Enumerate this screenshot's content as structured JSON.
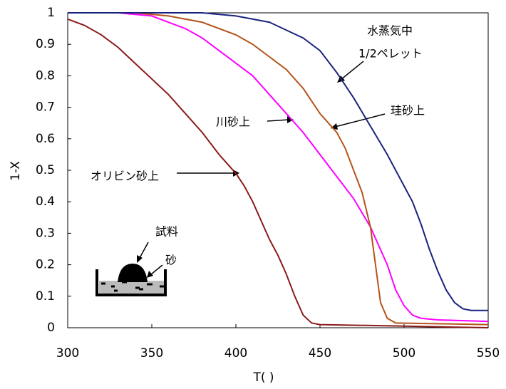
{
  "chart_data": {
    "type": "line",
    "xlabel": "T(   )",
    "ylabel": "1-X",
    "xlim": [
      300,
      550
    ],
    "ylim": [
      0,
      1
    ],
    "xticks": [
      300,
      350,
      400,
      450,
      500,
      550
    ],
    "yticks": [
      0,
      0.1,
      0.2,
      0.3,
      0.4,
      0.5,
      0.6,
      0.7,
      0.8,
      0.9,
      1
    ],
    "series": [
      {
        "color": "#8b1a1a",
        "x": [
          300,
          310,
          320,
          330,
          340,
          350,
          360,
          370,
          380,
          390,
          400,
          405,
          410,
          415,
          420,
          425,
          430,
          435,
          440,
          445,
          450,
          500,
          550
        ],
        "values": [
          0.98,
          0.96,
          0.93,
          0.89,
          0.84,
          0.79,
          0.74,
          0.68,
          0.62,
          0.55,
          0.49,
          0.45,
          0.4,
          0.34,
          0.28,
          0.23,
          0.17,
          0.1,
          0.04,
          0.015,
          0.01,
          0.005,
          0
        ]
      },
      {
        "color": "#ff00ff",
        "x": [
          300,
          330,
          350,
          360,
          370,
          380,
          390,
          400,
          410,
          420,
          430,
          440,
          450,
          460,
          470,
          480,
          490,
          495,
          500,
          505,
          510,
          520,
          550
        ],
        "values": [
          1,
          1,
          0.99,
          0.97,
          0.95,
          0.92,
          0.88,
          0.84,
          0.8,
          0.74,
          0.68,
          0.62,
          0.55,
          0.48,
          0.41,
          0.32,
          0.2,
          0.12,
          0.07,
          0.04,
          0.03,
          0.025,
          0.02
        ]
      },
      {
        "color": "#b5531a",
        "x": [
          300,
          340,
          360,
          380,
          400,
          410,
          420,
          430,
          440,
          450,
          460,
          465,
          470,
          475,
          480,
          483,
          486,
          490,
          495,
          550
        ],
        "values": [
          1,
          1,
          0.99,
          0.97,
          0.93,
          0.9,
          0.86,
          0.82,
          0.76,
          0.68,
          0.62,
          0.57,
          0.5,
          0.43,
          0.32,
          0.2,
          0.08,
          0.03,
          0.015,
          0.01
        ]
      },
      {
        "color": "#1a237e",
        "x": [
          300,
          380,
          400,
          420,
          440,
          450,
          460,
          470,
          480,
          490,
          500,
          505,
          510,
          515,
          520,
          525,
          530,
          535,
          540,
          550
        ],
        "values": [
          1,
          1,
          0.99,
          0.97,
          0.92,
          0.88,
          0.81,
          0.73,
          0.64,
          0.55,
          0.45,
          0.4,
          0.33,
          0.25,
          0.18,
          0.12,
          0.08,
          0.06,
          0.055,
          0.055
        ]
      }
    ],
    "annotations": [
      "水蒸気中",
      "1/2ペレット",
      "珪砂上",
      "川砂上",
      "オリビン砂上",
      "試料",
      "砂"
    ]
  }
}
